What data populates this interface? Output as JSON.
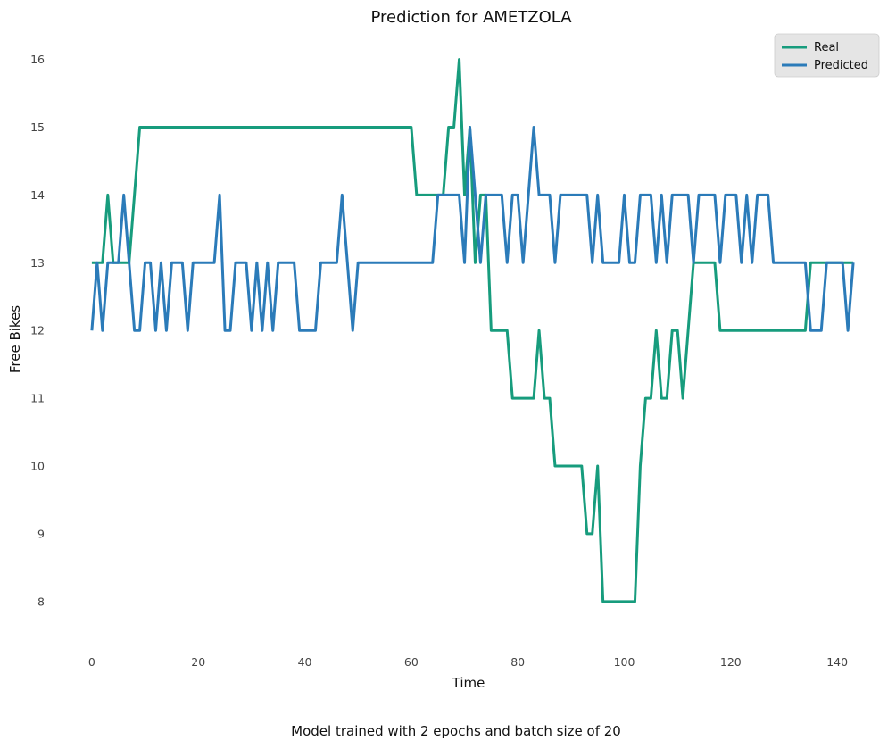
{
  "chart_data": {
    "type": "line",
    "title": "Prediction for AMETZOLA",
    "xlabel": "Time",
    "ylabel": "Free Bikes",
    "caption": "Model trained with 2 epochs and batch size of 20",
    "xlim": [
      -3,
      145
    ],
    "ylim": [
      7.55,
      16.35
    ],
    "xticks": [
      0,
      20,
      40,
      60,
      80,
      100,
      120,
      140
    ],
    "yticks": [
      8,
      9,
      10,
      11,
      12,
      13,
      14,
      15,
      16
    ],
    "grid": false,
    "legend_position": "top-right",
    "colors": {
      "Real": "#179c7d",
      "Predicted": "#2b7bb9"
    },
    "series": [
      {
        "name": "Real",
        "values": [
          13,
          13,
          13,
          14,
          13,
          13,
          13,
          13,
          14,
          15,
          15,
          15,
          15,
          15,
          15,
          15,
          15,
          15,
          15,
          15,
          15,
          15,
          15,
          15,
          15,
          15,
          15,
          15,
          15,
          15,
          15,
          15,
          15,
          15,
          15,
          15,
          15,
          15,
          15,
          15,
          15,
          15,
          15,
          15,
          15,
          15,
          15,
          15,
          15,
          15,
          15,
          15,
          15,
          15,
          15,
          15,
          15,
          15,
          15,
          15,
          15,
          14,
          14,
          14,
          14,
          14,
          14,
          15,
          15,
          16,
          14,
          15,
          13,
          14,
          14,
          12,
          12,
          12,
          12,
          11,
          11,
          11,
          11,
          11,
          12,
          11,
          11,
          10,
          10,
          10,
          10,
          10,
          10,
          9,
          9,
          10,
          8,
          8,
          8,
          8,
          8,
          8,
          8,
          10,
          11,
          11,
          12,
          11,
          11,
          12,
          12,
          11,
          12,
          13,
          13,
          13,
          13,
          13,
          12,
          12,
          12,
          12,
          12,
          12,
          12,
          12,
          12,
          12,
          12,
          12,
          12,
          12,
          12,
          12,
          12,
          13,
          13,
          13,
          13,
          13,
          13,
          13,
          13,
          13
        ]
      },
      {
        "name": "Predicted",
        "values": [
          12,
          13,
          12,
          13,
          13,
          13,
          14,
          13,
          12,
          12,
          13,
          13,
          12,
          13,
          12,
          13,
          13,
          13,
          12,
          13,
          13,
          13,
          13,
          13,
          14,
          12,
          12,
          13,
          13,
          13,
          12,
          13,
          12,
          13,
          12,
          13,
          13,
          13,
          13,
          12,
          12,
          12,
          12,
          13,
          13,
          13,
          13,
          14,
          13,
          12,
          13,
          13,
          13,
          13,
          13,
          13,
          13,
          13,
          13,
          13,
          13,
          13,
          13,
          13,
          13,
          14,
          14,
          14,
          14,
          14,
          13,
          15,
          14,
          13,
          14,
          14,
          14,
          14,
          13,
          14,
          14,
          13,
          14,
          15,
          14,
          14,
          14,
          13,
          14,
          14,
          14,
          14,
          14,
          14,
          13,
          14,
          13,
          13,
          13,
          13,
          14,
          13,
          13,
          14,
          14,
          14,
          13,
          14,
          13,
          14,
          14,
          14,
          14,
          13,
          14,
          14,
          14,
          14,
          13,
          14,
          14,
          14,
          13,
          14,
          13,
          14,
          14,
          14,
          13,
          13,
          13,
          13,
          13,
          13,
          13,
          12,
          12,
          12,
          13,
          13,
          13,
          13,
          12,
          13
        ]
      }
    ]
  }
}
